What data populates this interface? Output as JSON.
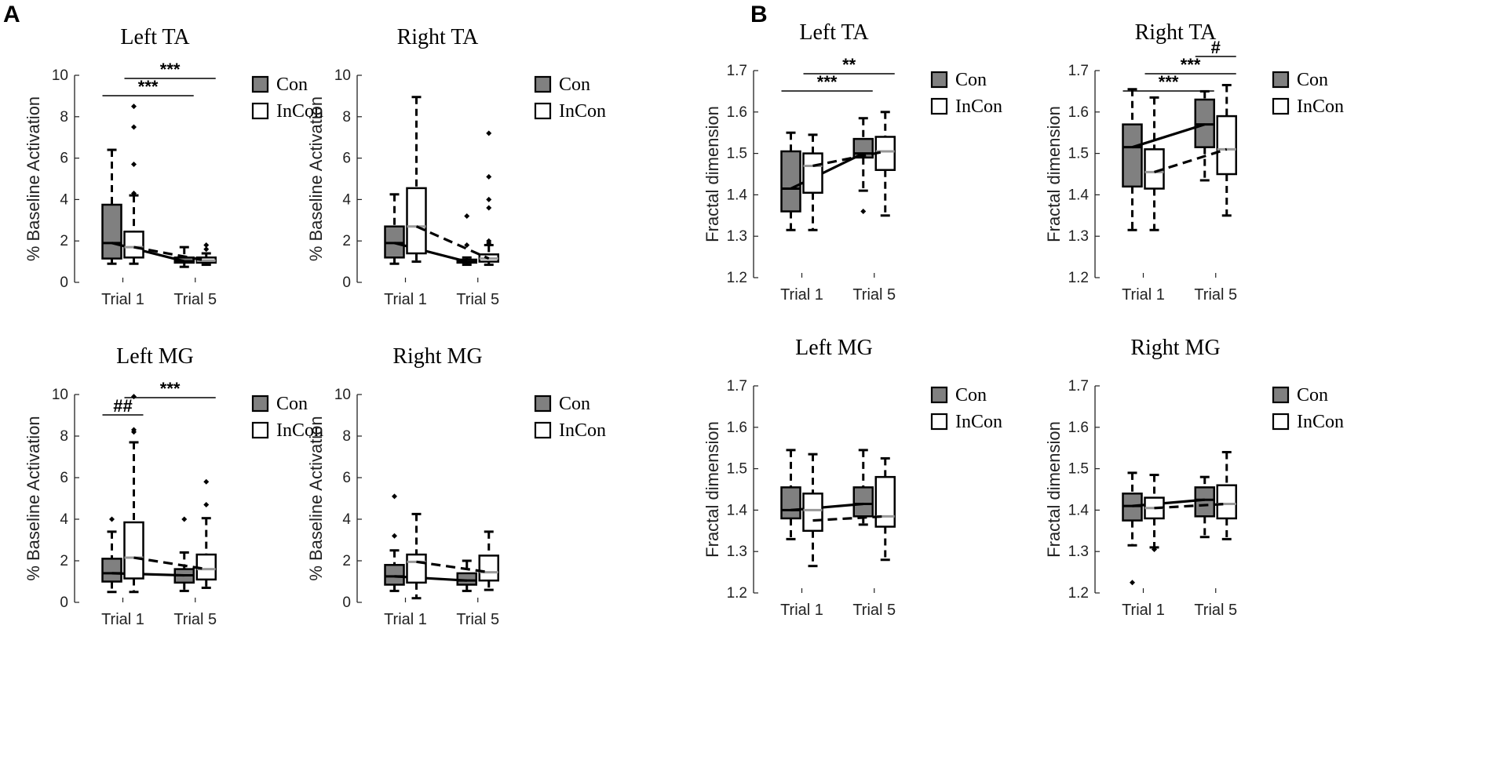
{
  "panel_labels": [
    "A",
    "B"
  ],
  "legend": {
    "con_label": "Con",
    "incon_label": "InCon",
    "con_color": "#808080",
    "incon_color": "#ffffff",
    "con_mean_color": "#000000",
    "incon_mean_color": "#000000",
    "median_con_color": "#000000",
    "median_incon_color": "#999999"
  },
  "chart_data": [
    {
      "type": "box",
      "title": "Left TA",
      "ylabel": "% Baseline Activation",
      "ylim": [
        0,
        10
      ],
      "yticks": [
        "0",
        "2",
        "4",
        "6",
        "8",
        "10"
      ],
      "categories": [
        "Trial 1",
        "Trial 5"
      ],
      "series": [
        {
          "name": "Con",
          "boxes": [
            {
              "whislo": 0.9,
              "q1": 1.15,
              "med": 1.9,
              "q3": 3.75,
              "whishi": 6.4,
              "outliers": []
            },
            {
              "whislo": 0.75,
              "q1": 0.95,
              "med": 1.02,
              "q3": 1.2,
              "whishi": 1.7,
              "outliers": []
            }
          ],
          "means": [
            1.9,
            1.02
          ]
        },
        {
          "name": "InCon",
          "boxes": [
            {
              "whislo": 0.9,
              "q1": 1.2,
              "med": 1.7,
              "q3": 2.45,
              "whishi": 4.2,
              "outliers": [
                4.3,
                5.7,
                7.5,
                8.5
              ]
            },
            {
              "whislo": 0.85,
              "q1": 0.95,
              "med": 1.05,
              "q3": 1.2,
              "whishi": 1.4,
              "outliers": [
                1.6,
                1.8
              ]
            }
          ],
          "means": [
            1.7,
            1.05
          ]
        }
      ],
      "annotations": [
        {
          "text": "***",
          "from": 0,
          "to": 2
        },
        {
          "text": "***",
          "from": 1,
          "to": 3
        }
      ]
    },
    {
      "type": "box",
      "title": "Right TA",
      "ylabel": "% Baseline Activation",
      "ylim": [
        0,
        10
      ],
      "yticks": [
        "0",
        "2",
        "4",
        "6",
        "8",
        "10"
      ],
      "categories": [
        "Trial 1",
        "Trial 5"
      ],
      "series": [
        {
          "name": "Con",
          "boxes": [
            {
              "whislo": 0.9,
              "q1": 1.2,
              "med": 1.9,
              "q3": 2.7,
              "whishi": 4.25,
              "outliers": []
            },
            {
              "whislo": 0.85,
              "q1": 0.95,
              "med": 1.0,
              "q3": 1.1,
              "whishi": 1.2,
              "outliers": [
                1.8,
                3.2
              ]
            }
          ],
          "means": [
            1.9,
            1.0
          ]
        },
        {
          "name": "InCon",
          "boxes": [
            {
              "whislo": 1.0,
              "q1": 1.4,
              "med": 2.7,
              "q3": 4.55,
              "whishi": 8.95,
              "outliers": []
            },
            {
              "whislo": 0.85,
              "q1": 1.0,
              "med": 1.15,
              "q3": 1.35,
              "whishi": 1.8,
              "outliers": [
                1.9,
                2.0,
                3.6,
                4.0,
                5.1,
                7.2
              ]
            }
          ],
          "means": [
            2.7,
            1.15
          ]
        }
      ],
      "annotations": []
    },
    {
      "type": "box",
      "title": "Left MG",
      "ylabel": "% Baseline Activation",
      "ylim": [
        0,
        10
      ],
      "yticks": [
        "0",
        "2",
        "4",
        "6",
        "8",
        "10"
      ],
      "categories": [
        "Trial 1",
        "Trial 5"
      ],
      "series": [
        {
          "name": "Con",
          "boxes": [
            {
              "whislo": 0.5,
              "q1": 1.0,
              "med": 1.4,
              "q3": 2.1,
              "whishi": 3.4,
              "outliers": [
                4.0
              ]
            },
            {
              "whislo": 0.55,
              "q1": 0.95,
              "med": 1.3,
              "q3": 1.6,
              "whishi": 2.4,
              "outliers": [
                4.0
              ]
            }
          ],
          "means": [
            1.4,
            1.3
          ]
        },
        {
          "name": "InCon",
          "boxes": [
            {
              "whislo": 0.5,
              "q1": 1.15,
              "med": 2.15,
              "q3": 3.85,
              "whishi": 7.7,
              "outliers": [
                8.2,
                8.3,
                9.9
              ]
            },
            {
              "whislo": 0.7,
              "q1": 1.1,
              "med": 1.6,
              "q3": 2.3,
              "whishi": 4.05,
              "outliers": [
                4.7,
                5.8
              ]
            }
          ],
          "means": [
            2.15,
            1.6
          ]
        }
      ],
      "annotations": [
        {
          "text": "##",
          "from": 0,
          "to": 1
        },
        {
          "text": "***",
          "from": 1,
          "to": 3
        }
      ]
    },
    {
      "type": "box",
      "title": "Right MG",
      "ylabel": "% Baseline Activation",
      "ylim": [
        0,
        10
      ],
      "yticks": [
        "0",
        "2",
        "4",
        "6",
        "8",
        "10"
      ],
      "categories": [
        "Trial 1",
        "Trial 5"
      ],
      "series": [
        {
          "name": "Con",
          "boxes": [
            {
              "whislo": 0.55,
              "q1": 0.85,
              "med": 1.25,
              "q3": 1.8,
              "whishi": 2.5,
              "outliers": [
                3.2,
                5.1
              ]
            },
            {
              "whislo": 0.55,
              "q1": 0.85,
              "med": 1.05,
              "q3": 1.4,
              "whishi": 2.0,
              "outliers": []
            }
          ],
          "means": [
            1.25,
            1.05
          ]
        },
        {
          "name": "InCon",
          "boxes": [
            {
              "whislo": 0.2,
              "q1": 0.95,
              "med": 1.95,
              "q3": 2.3,
              "whishi": 4.25,
              "outliers": []
            },
            {
              "whislo": 0.6,
              "q1": 1.05,
              "med": 1.45,
              "q3": 2.25,
              "whishi": 3.4,
              "outliers": []
            }
          ],
          "means": [
            1.95,
            1.45
          ]
        }
      ],
      "annotations": []
    },
    {
      "type": "box",
      "title": "Left TA",
      "ylabel": "Fractal dimension",
      "ylim": [
        1.2,
        1.7
      ],
      "yticks": [
        "1.2",
        "1.3",
        "1.4",
        "1.5",
        "1.6",
        "1.7"
      ],
      "categories": [
        "Trial 1",
        "Trial 5"
      ],
      "series": [
        {
          "name": "Con",
          "boxes": [
            {
              "whislo": 1.315,
              "q1": 1.36,
              "med": 1.415,
              "q3": 1.505,
              "whishi": 1.55,
              "outliers": []
            },
            {
              "whislo": 1.41,
              "q1": 1.49,
              "med": 1.5,
              "q3": 1.535,
              "whishi": 1.585,
              "outliers": [
                1.36
              ]
            }
          ],
          "means": [
            1.415,
            1.5
          ]
        },
        {
          "name": "InCon",
          "boxes": [
            {
              "whislo": 1.315,
              "q1": 1.405,
              "med": 1.47,
              "q3": 1.5,
              "whishi": 1.545,
              "outliers": []
            },
            {
              "whislo": 1.35,
              "q1": 1.46,
              "med": 1.505,
              "q3": 1.54,
              "whishi": 1.6,
              "outliers": []
            }
          ],
          "means": [
            1.47,
            1.505
          ]
        }
      ],
      "annotations": [
        {
          "text": "***",
          "from": 0,
          "to": 2
        },
        {
          "text": "**",
          "from": 1,
          "to": 3
        }
      ]
    },
    {
      "type": "box",
      "title": "Right TA",
      "ylabel": "Fractal dimension",
      "ylim": [
        1.2,
        1.7
      ],
      "yticks": [
        "1.2",
        "1.3",
        "1.4",
        "1.5",
        "1.6",
        "1.7"
      ],
      "categories": [
        "Trial 1",
        "Trial 5"
      ],
      "series": [
        {
          "name": "Con",
          "boxes": [
            {
              "whislo": 1.315,
              "q1": 1.42,
              "med": 1.515,
              "q3": 1.57,
              "whishi": 1.655,
              "outliers": []
            },
            {
              "whislo": 1.435,
              "q1": 1.515,
              "med": 1.57,
              "q3": 1.63,
              "whishi": 1.65,
              "outliers": []
            }
          ],
          "means": [
            1.515,
            1.57
          ]
        },
        {
          "name": "InCon",
          "boxes": [
            {
              "whislo": 1.315,
              "q1": 1.415,
              "med": 1.455,
              "q3": 1.51,
              "whishi": 1.635,
              "outliers": []
            },
            {
              "whislo": 1.35,
              "q1": 1.45,
              "med": 1.51,
              "q3": 1.59,
              "whishi": 1.665,
              "outliers": []
            }
          ],
          "means": [
            1.455,
            1.51
          ]
        }
      ],
      "annotations": [
        {
          "text": "***",
          "from": 0,
          "to": 2
        },
        {
          "text": "***",
          "from": 1,
          "to": 3
        },
        {
          "text": "#",
          "from": 2,
          "to": 3
        }
      ]
    },
    {
      "type": "box",
      "title": "Left MG",
      "ylabel": "Fractal dimension",
      "ylim": [
        1.2,
        1.7
      ],
      "yticks": [
        "1.2",
        "1.3",
        "1.4",
        "1.5",
        "1.6",
        "1.7"
      ],
      "categories": [
        "Trial 1",
        "Trial 5"
      ],
      "series": [
        {
          "name": "Con",
          "boxes": [
            {
              "whislo": 1.33,
              "q1": 1.38,
              "med": 1.4,
              "q3": 1.455,
              "whishi": 1.545,
              "outliers": []
            },
            {
              "whislo": 1.365,
              "q1": 1.385,
              "med": 1.415,
              "q3": 1.455,
              "whishi": 1.545,
              "outliers": []
            }
          ],
          "means": [
            1.4,
            1.415
          ]
        },
        {
          "name": "InCon",
          "boxes": [
            {
              "whislo": 1.265,
              "q1": 1.35,
              "med": 1.4,
              "q3": 1.44,
              "whishi": 1.535,
              "outliers": []
            },
            {
              "whislo": 1.28,
              "q1": 1.36,
              "med": 1.385,
              "q3": 1.48,
              "whishi": 1.525,
              "outliers": []
            }
          ],
          "means": [
            1.375,
            1.385
          ]
        }
      ],
      "annotations": []
    },
    {
      "type": "box",
      "title": "Right MG",
      "ylabel": "Fractal dimension",
      "ylim": [
        1.2,
        1.7
      ],
      "yticks": [
        "1.2",
        "1.3",
        "1.4",
        "1.5",
        "1.6",
        "1.7"
      ],
      "categories": [
        "Trial 1",
        "Trial 5"
      ],
      "series": [
        {
          "name": "Con",
          "boxes": [
            {
              "whislo": 1.315,
              "q1": 1.375,
              "med": 1.41,
              "q3": 1.44,
              "whishi": 1.49,
              "outliers": [
                1.225
              ]
            },
            {
              "whislo": 1.335,
              "q1": 1.385,
              "med": 1.425,
              "q3": 1.455,
              "whishi": 1.48,
              "outliers": []
            }
          ],
          "means": [
            1.41,
            1.425
          ]
        },
        {
          "name": "InCon",
          "boxes": [
            {
              "whislo": 1.31,
              "q1": 1.38,
              "med": 1.405,
              "q3": 1.43,
              "whishi": 1.485,
              "outliers": [
                1.305
              ]
            },
            {
              "whislo": 1.33,
              "q1": 1.38,
              "med": 1.415,
              "q3": 1.46,
              "whishi": 1.54,
              "outliers": []
            }
          ],
          "means": [
            1.405,
            1.415
          ]
        }
      ],
      "annotations": []
    }
  ]
}
